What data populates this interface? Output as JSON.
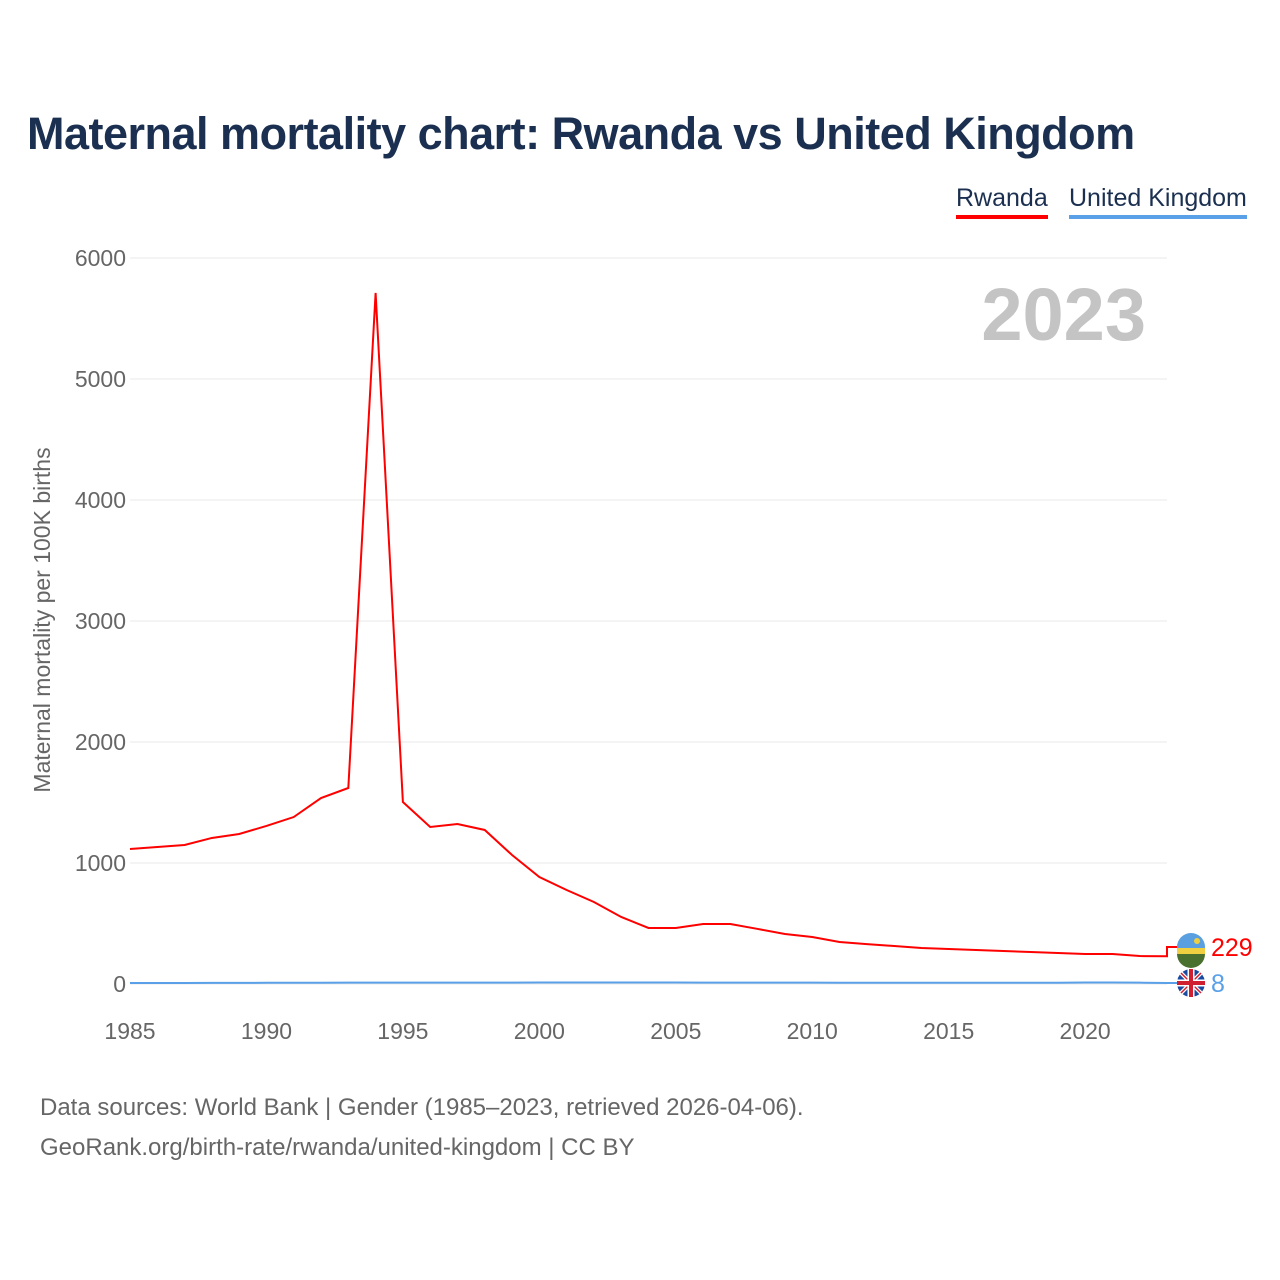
{
  "footer": {
    "line1": "Data sources: World Bank | Gender (1985–2023, retrieved 2026-04-06).",
    "line2": "GeoRank.org/birth-rate/rwanda/united-kingdom | CC BY"
  },
  "chart_data": {
    "type": "line",
    "title": "Maternal mortality chart: Rwanda vs United Kingdom",
    "ylabel": "Maternal mortality per 100K births",
    "xlabel": "",
    "year_label": "2023",
    "ylim": [
      0,
      6000
    ],
    "xlim": [
      1985,
      2023
    ],
    "yticks": [
      "0",
      "1000",
      "2000",
      "3000",
      "4000",
      "5000",
      "6000"
    ],
    "xticks": [
      "1985",
      "1990",
      "1995",
      "2000",
      "2005",
      "2010",
      "2015",
      "2020"
    ],
    "legend_position": "top-right",
    "x": [
      1985,
      1986,
      1987,
      1988,
      1989,
      1990,
      1991,
      1992,
      1993,
      1994,
      1995,
      1996,
      1997,
      1998,
      1999,
      2000,
      2001,
      2002,
      2003,
      2004,
      2005,
      2006,
      2007,
      2008,
      2009,
      2010,
      2011,
      2012,
      2013,
      2014,
      2015,
      2016,
      2017,
      2018,
      2019,
      2020,
      2021,
      2022,
      2023
    ],
    "series": [
      {
        "name": "Rwanda",
        "color": "#ff0000",
        "end_label": "229",
        "flag": "rwanda-flag",
        "values": [
          1116,
          1132,
          1149,
          1207,
          1240,
          1306,
          1380,
          1537,
          1620,
          5711,
          1504,
          1298,
          1322,
          1273,
          1066,
          884,
          777,
          678,
          554,
          463,
          463,
          496,
          496,
          455,
          413,
          388,
          347,
          330,
          314,
          298,
          289,
          281,
          273,
          264,
          256,
          248,
          248,
          231,
          229
        ]
      },
      {
        "name": "United Kingdom",
        "color": "#5aa0e8",
        "end_label": "8",
        "flag": "uk-flag",
        "values": [
          8,
          8,
          8,
          9,
          9,
          10,
          10,
          10,
          11,
          11,
          11,
          11,
          11,
          11,
          11,
          12,
          12,
          12,
          12,
          12,
          12,
          11,
          11,
          11,
          11,
          11,
          10,
          10,
          10,
          10,
          10,
          10,
          10,
          10,
          10,
          12,
          12,
          11,
          8
        ]
      }
    ]
  }
}
